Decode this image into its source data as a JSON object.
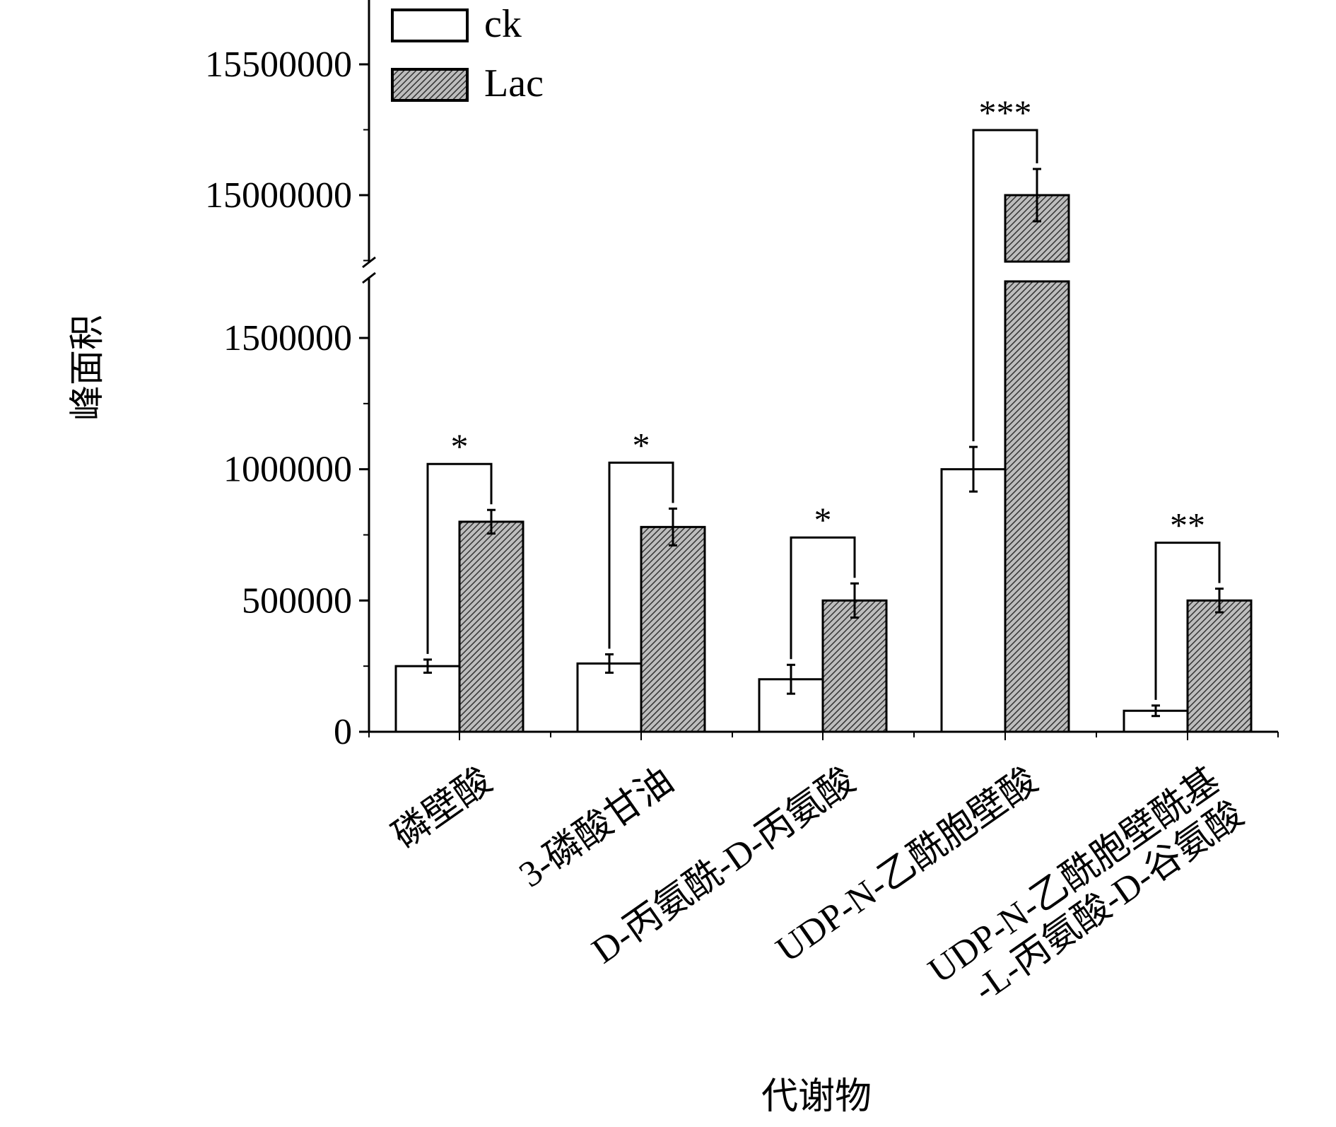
{
  "chart_data": {
    "type": "bar",
    "xlabel": "代谢物",
    "ylabel": "峰面积",
    "categories": [
      [
        "磷壁酸"
      ],
      [
        "3-磷酸甘油"
      ],
      [
        "D-丙氨酰-D-丙氨酸"
      ],
      [
        "UDP-N-乙酰胞壁酸"
      ],
      [
        "UDP-N-乙酰胞壁酰基",
        "-L-丙氨酸-D-谷氨酸"
      ]
    ],
    "series": [
      {
        "name": "ck",
        "pattern": "none",
        "values": [
          250000,
          260000,
          200000,
          1000000,
          80000
        ],
        "errors": [
          25000,
          35000,
          55000,
          85000,
          20000
        ]
      },
      {
        "name": "Lac",
        "pattern": "hatch",
        "values": [
          800000,
          780000,
          500000,
          15000000,
          500000
        ],
        "errors": [
          45000,
          70000,
          65000,
          100000,
          45000
        ]
      }
    ],
    "significance": [
      "*",
      "*",
      "*",
      "***",
      "**"
    ],
    "y_axis": {
      "broken": true,
      "lower_range": [
        0,
        1750000
      ],
      "upper_range": [
        14750000,
        15800000
      ],
      "lower_ticks": [
        {
          "value": 0,
          "label": "0"
        },
        {
          "value": 500000,
          "label": "500000"
        },
        {
          "value": 1000000,
          "label": "1000000"
        },
        {
          "value": 1500000,
          "label": "1500000"
        }
      ],
      "upper_ticks": [
        {
          "value": 15000000,
          "label": "15000000"
        },
        {
          "value": 15500000,
          "label": "15500000"
        }
      ]
    },
    "legend_position": "top-left",
    "grid": false
  }
}
